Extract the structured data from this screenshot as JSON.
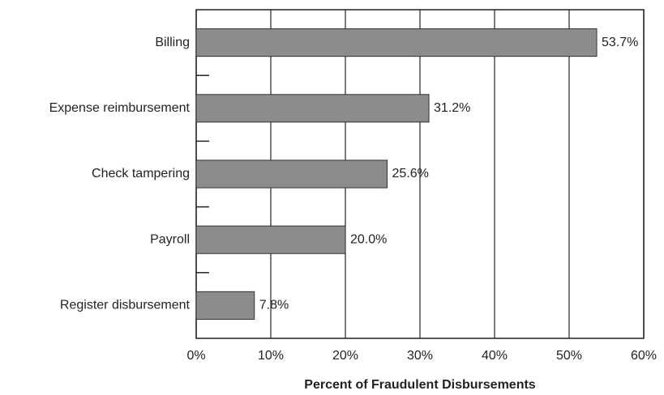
{
  "chart_data": {
    "type": "bar",
    "orientation": "horizontal",
    "categories": [
      "Billing",
      "Expense reimbursement",
      "Check tampering",
      "Payroll",
      "Register disbursement"
    ],
    "values": [
      53.7,
      31.2,
      25.6,
      20.0,
      7.8
    ],
    "value_labels": [
      "53.7%",
      "31.2%",
      "25.6%",
      "20.0%",
      "7.8%"
    ],
    "color": "#8c8c8c",
    "xlabel": "Percent of Fraudulent Disbursements",
    "xlim": [
      0,
      60
    ],
    "xticks": [
      {
        "value": 0,
        "label": "0%"
      },
      {
        "value": 10,
        "label": "10%"
      },
      {
        "value": 20,
        "label": "20%"
      },
      {
        "value": 30,
        "label": "30%"
      },
      {
        "value": 40,
        "label": "40%"
      },
      {
        "value": 50,
        "label": "50%"
      },
      {
        "value": 60,
        "label": "60%"
      }
    ],
    "grid": true
  }
}
